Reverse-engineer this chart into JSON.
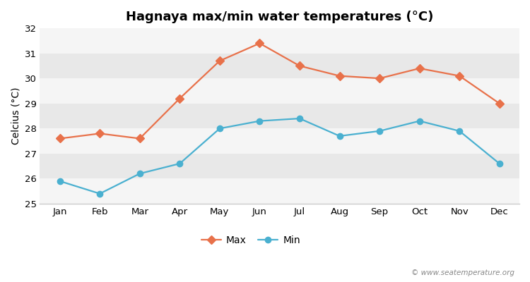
{
  "months": [
    "Jan",
    "Feb",
    "Mar",
    "Apr",
    "May",
    "Jun",
    "Jul",
    "Aug",
    "Sep",
    "Oct",
    "Nov",
    "Dec"
  ],
  "max_temps": [
    27.6,
    27.8,
    27.6,
    29.2,
    30.7,
    31.4,
    30.5,
    30.1,
    30.0,
    30.4,
    30.1,
    29.0
  ],
  "min_temps": [
    25.9,
    25.4,
    26.2,
    26.6,
    28.0,
    28.3,
    28.4,
    27.7,
    27.9,
    28.3,
    27.9,
    26.6
  ],
  "title": "Hagnaya max/min water temperatures (°C)",
  "ylabel": "Celcius (°C)",
  "ylim": [
    25,
    32
  ],
  "yticks": [
    25,
    26,
    27,
    28,
    29,
    30,
    31,
    32
  ],
  "max_color": "#e8714a",
  "min_color": "#4ab0d0",
  "fig_bg": "#ffffff",
  "band_light": "#f5f5f5",
  "band_dark": "#e8e8e8",
  "watermark": "© www.seatemperature.org",
  "legend_labels": [
    "Max",
    "Min"
  ],
  "title_fontsize": 13,
  "label_fontsize": 10,
  "tick_fontsize": 9.5
}
